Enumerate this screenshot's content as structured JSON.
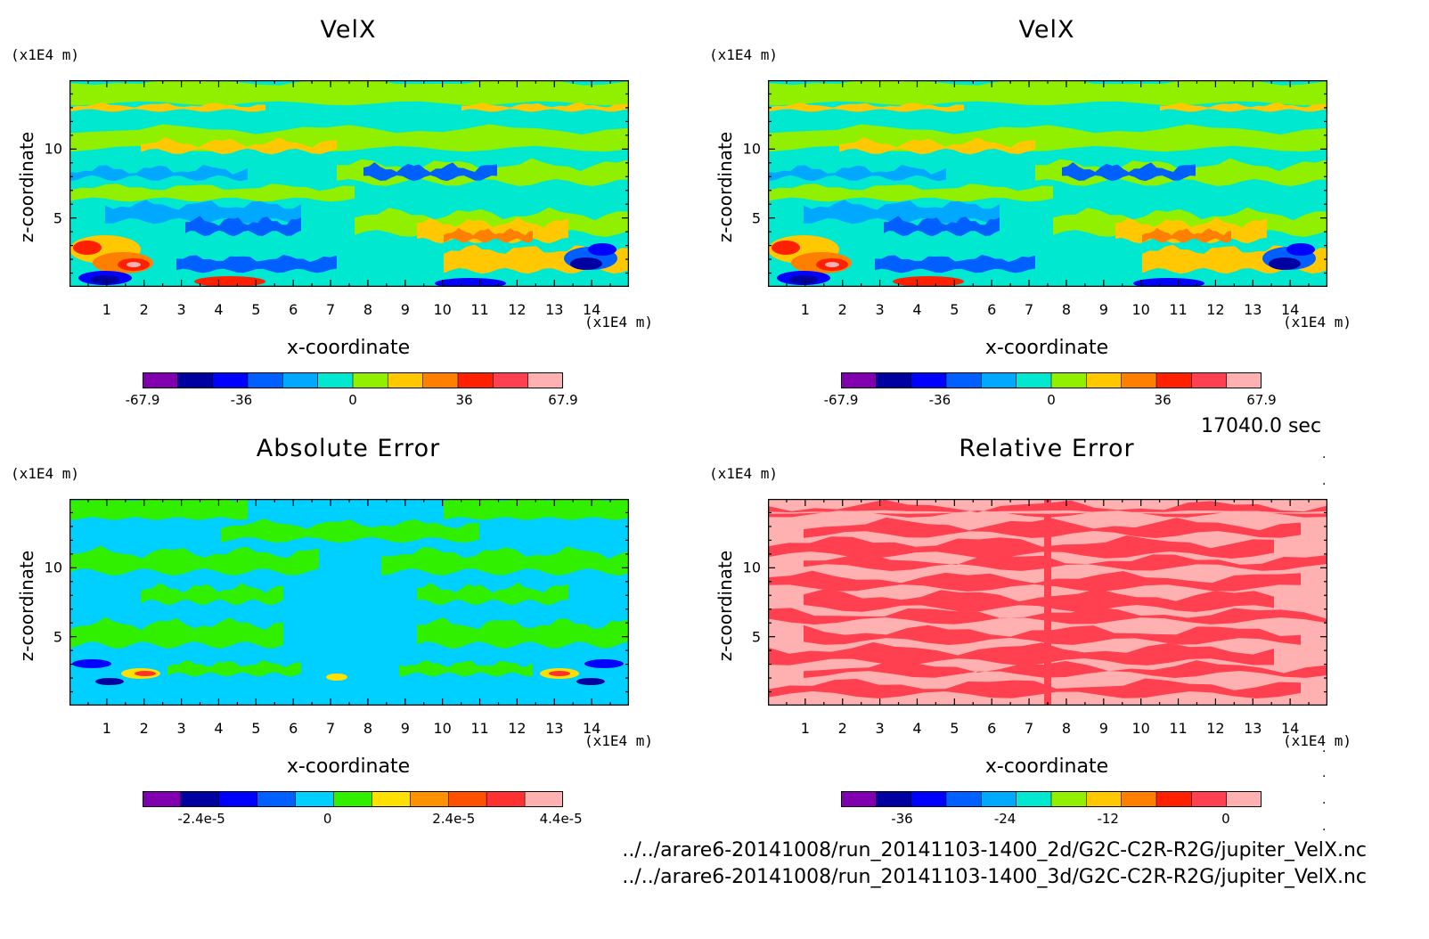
{
  "timestamp": "17040.0 sec",
  "files": [
    "../../arare6-20141008/run_20141103-1400_2d/G2C-C2R-R2G/jupiter_VelX.nc",
    "../../arare6-20141008/run_20141103-1400_3d/G2C-C2R-R2G/jupiter_VelX.nc"
  ],
  "chart_data": [
    {
      "type": "heatmap",
      "title": "VelX",
      "xlabel": "x-coordinate",
      "ylabel": "z-coordinate",
      "x_unit": "(x1E4 m)",
      "y_unit": "(x1E4 m)",
      "xlim": [
        0,
        15
      ],
      "ylim": [
        0,
        15
      ],
      "xticks": [
        "1",
        "2",
        "3",
        "4",
        "5",
        "6",
        "7",
        "8",
        "9",
        "10",
        "11",
        "12",
        "13",
        "14"
      ],
      "yticks": [
        "5",
        "10"
      ],
      "colorbar": {
        "colors": [
          "#8000b0",
          "#0000a0",
          "#0000ff",
          "#0060ff",
          "#00a8ff",
          "#00e8d0",
          "#90f000",
          "#ffc800",
          "#ff8000",
          "#ff2000",
          "#ff4050",
          "#ffb0b0"
        ],
        "tick_labels": [
          "-67.9",
          "-36",
          "0",
          "36",
          "67.9"
        ]
      },
      "palette": "velx"
    },
    {
      "type": "heatmap",
      "title": "VelX",
      "xlabel": "x-coordinate",
      "ylabel": "z-coordinate",
      "x_unit": "(x1E4 m)",
      "y_unit": "(x1E4 m)",
      "xlim": [
        0,
        15
      ],
      "ylim": [
        0,
        15
      ],
      "xticks": [
        "1",
        "2",
        "3",
        "4",
        "5",
        "6",
        "7",
        "8",
        "9",
        "10",
        "11",
        "12",
        "13",
        "14"
      ],
      "yticks": [
        "5",
        "10"
      ],
      "colorbar": {
        "colors": [
          "#8000b0",
          "#0000a0",
          "#0000ff",
          "#0060ff",
          "#00a8ff",
          "#00e8d0",
          "#90f000",
          "#ffc800",
          "#ff8000",
          "#ff2000",
          "#ff4050",
          "#ffb0b0"
        ],
        "tick_labels": [
          "-67.9",
          "-36",
          "0",
          "36",
          "67.9"
        ]
      },
      "palette": "velx"
    },
    {
      "type": "heatmap",
      "title": "Absolute Error",
      "xlabel": "x-coordinate",
      "ylabel": "z-coordinate",
      "x_unit": "(x1E4 m)",
      "y_unit": "(x1E4 m)",
      "xlim": [
        0,
        15
      ],
      "ylim": [
        0,
        15
      ],
      "xticks": [
        "1",
        "2",
        "3",
        "4",
        "5",
        "6",
        "7",
        "8",
        "9",
        "10",
        "11",
        "12",
        "13",
        "14"
      ],
      "yticks": [
        "5",
        "10"
      ],
      "colorbar": {
        "colors": [
          "#8000b0",
          "#0000a0",
          "#0000ff",
          "#0060ff",
          "#00d0ff",
          "#30f000",
          "#ffe000",
          "#ff9000",
          "#ff5000",
          "#ff3030",
          "#ffb0b0"
        ],
        "tick_labels": [
          "-2.4e-5",
          "0",
          "2.4e-5",
          "4.4e-5"
        ]
      },
      "palette": "abs"
    },
    {
      "type": "heatmap",
      "title": "Relative Error",
      "xlabel": "x-coordinate",
      "ylabel": "z-coordinate",
      "x_unit": "(x1E4 m)",
      "y_unit": "(x1E4 m)",
      "xlim": [
        0,
        15
      ],
      "ylim": [
        0,
        15
      ],
      "xticks": [
        "1",
        "2",
        "3",
        "4",
        "5",
        "6",
        "7",
        "8",
        "9",
        "10",
        "11",
        "12",
        "13",
        "14"
      ],
      "yticks": [
        "5",
        "10"
      ],
      "colorbar": {
        "colors": [
          "#8000b0",
          "#0000a0",
          "#0000ff",
          "#0060ff",
          "#00a8ff",
          "#00e8d0",
          "#90f000",
          "#ffc800",
          "#ff8000",
          "#ff2000",
          "#ff4050",
          "#ffb0b0"
        ],
        "tick_labels": [
          "-36",
          "-24",
          "-12",
          "0"
        ]
      },
      "palette": "rel"
    }
  ]
}
